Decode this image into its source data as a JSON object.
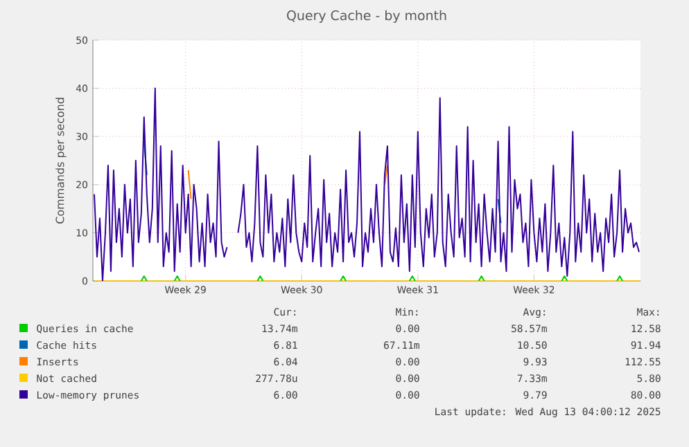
{
  "chart_data": {
    "type": "line",
    "title": "Query Cache - by month",
    "ylabel": "Commands per second",
    "categories": [
      null,
      null,
      null,
      null,
      null,
      null,
      null,
      null,
      null,
      null,
      null,
      null,
      null,
      null,
      null,
      null,
      null,
      null,
      null,
      null,
      null,
      null,
      null,
      null,
      null,
      null,
      null,
      null,
      null,
      null,
      null,
      null,
      null,
      "Week 29",
      null,
      null,
      null,
      null,
      null,
      null,
      null,
      null,
      null,
      null,
      null,
      null,
      null,
      null,
      null,
      null,
      null,
      null,
      null,
      null,
      null,
      null,
      null,
      null,
      null,
      null,
      null,
      null,
      null,
      null,
      null,
      null,
      null,
      null,
      null,
      null,
      null,
      null,
      null,
      null,
      null,
      "Week 30",
      null,
      null,
      null,
      null,
      null,
      null,
      null,
      null,
      null,
      null,
      null,
      null,
      null,
      null,
      null,
      null,
      null,
      null,
      null,
      null,
      null,
      null,
      null,
      null,
      null,
      null,
      null,
      null,
      null,
      null,
      null,
      null,
      null,
      null,
      null,
      null,
      null,
      null,
      null,
      null,
      null,
      "Week 31",
      null,
      null,
      null,
      null,
      null,
      null,
      null,
      null,
      null,
      null,
      null,
      null,
      null,
      null,
      null,
      null,
      null,
      null,
      null,
      null,
      null,
      null,
      null,
      null,
      null,
      null,
      null,
      null,
      null,
      null,
      null,
      null,
      null,
      null,
      null,
      null,
      null,
      null,
      null,
      null,
      null,
      "Week 32",
      null,
      null,
      null,
      null,
      null,
      null,
      null,
      null,
      null,
      null,
      null,
      null,
      null,
      null,
      null,
      null,
      null,
      null,
      null,
      null,
      null,
      null,
      null,
      null,
      null,
      null,
      null,
      null,
      null,
      null,
      null,
      null,
      null,
      null,
      null,
      null,
      null,
      null
    ],
    "series": [
      {
        "name": "Queries in cache",
        "color": "#00cc00",
        "values": [
          null,
          null,
          null,
          null,
          null,
          null,
          null,
          null,
          null,
          null,
          null,
          null,
          null,
          null,
          null,
          null,
          null,
          0,
          1,
          0,
          null,
          null,
          null,
          null,
          null,
          null,
          null,
          null,
          null,
          0,
          1,
          0,
          null,
          null,
          null,
          null,
          null,
          null,
          null,
          null,
          null,
          null,
          null,
          null,
          null,
          null,
          null,
          null,
          null,
          null,
          null,
          null,
          null,
          null,
          null,
          null,
          null,
          null,
          null,
          0,
          1,
          0,
          null,
          null,
          null,
          null,
          null,
          null,
          null,
          null,
          null,
          null,
          null,
          null,
          null,
          null,
          null,
          null,
          null,
          null,
          null,
          null,
          null,
          null,
          null,
          null,
          null,
          null,
          null,
          0,
          1,
          0,
          null,
          null,
          null,
          null,
          null,
          null,
          null,
          null,
          null,
          null,
          null,
          null,
          null,
          null,
          null,
          null,
          null,
          null,
          null,
          null,
          null,
          null,
          0,
          1,
          0,
          null,
          null,
          null,
          null,
          null,
          null,
          null,
          null,
          null,
          null,
          null,
          null,
          null,
          null,
          null,
          null,
          null,
          null,
          null,
          null,
          null,
          null,
          0,
          1,
          0,
          null,
          null,
          null,
          null,
          null,
          null,
          null,
          null,
          null,
          null,
          null,
          null,
          null,
          null,
          null,
          null,
          null,
          null,
          null,
          null,
          null,
          null,
          null,
          null,
          null,
          null,
          null,
          0,
          1,
          0,
          null,
          null,
          null,
          null,
          null,
          null,
          null,
          null,
          null,
          null,
          null,
          null,
          null,
          null,
          null,
          null,
          null,
          0,
          1,
          0,
          null,
          null,
          null,
          null,
          null,
          null
        ]
      },
      {
        "name": "Cache hits",
        "color": "#0066b3",
        "values": [
          null,
          null,
          null,
          null,
          null,
          null,
          null,
          null,
          null,
          null,
          null,
          null,
          null,
          null,
          null,
          null,
          null,
          null,
          29,
          22,
          null,
          null,
          null,
          null,
          null,
          null,
          null,
          null,
          null,
          null,
          null,
          null,
          null,
          null,
          null,
          null,
          null,
          null,
          null,
          null,
          null,
          null,
          null,
          null,
          null,
          null,
          null,
          null,
          null,
          null,
          null,
          null,
          null,
          null,
          null,
          null,
          null,
          null,
          null,
          null,
          null,
          null,
          null,
          null,
          null,
          null,
          null,
          null,
          null,
          null,
          null,
          null,
          null,
          null,
          null,
          null,
          null,
          null,
          null,
          null,
          null,
          null,
          null,
          null,
          null,
          null,
          null,
          null,
          null,
          null,
          null,
          null,
          null,
          null,
          null,
          null,
          null,
          null,
          null,
          null,
          null,
          null,
          null,
          null,
          null,
          null,
          null,
          null,
          null,
          null,
          null,
          null,
          null,
          null,
          null,
          null,
          null,
          null,
          null,
          null,
          null,
          null,
          null,
          null,
          null,
          null,
          null,
          null,
          null,
          null,
          null,
          null,
          null,
          null,
          null,
          null,
          null,
          null,
          null,
          null,
          null,
          null,
          null,
          null,
          null,
          null,
          17,
          12,
          null,
          null,
          null,
          null,
          null,
          null,
          null,
          null,
          null,
          null,
          null,
          null,
          null,
          null,
          null,
          null,
          null,
          null,
          null,
          null,
          null,
          null,
          null,
          null,
          null,
          null,
          null,
          null,
          null,
          null,
          null,
          null,
          null,
          null,
          null,
          null,
          null,
          null,
          null,
          null,
          null,
          null,
          null,
          null,
          null,
          null,
          null,
          null,
          null,
          null
        ]
      },
      {
        "name": "Inserts",
        "color": "#ff8000",
        "values": [
          null,
          null,
          null,
          null,
          null,
          null,
          null,
          null,
          null,
          null,
          null,
          null,
          null,
          null,
          null,
          null,
          null,
          null,
          null,
          null,
          null,
          null,
          null,
          null,
          null,
          null,
          null,
          null,
          null,
          null,
          null,
          null,
          null,
          null,
          23,
          17,
          null,
          null,
          null,
          null,
          null,
          null,
          null,
          null,
          null,
          null,
          null,
          null,
          null,
          null,
          null,
          null,
          null,
          null,
          null,
          null,
          null,
          null,
          null,
          null,
          null,
          null,
          null,
          null,
          null,
          null,
          null,
          null,
          null,
          null,
          null,
          null,
          null,
          null,
          null,
          null,
          null,
          null,
          null,
          null,
          null,
          null,
          null,
          null,
          null,
          null,
          null,
          null,
          null,
          null,
          null,
          null,
          null,
          null,
          null,
          null,
          null,
          null,
          null,
          null,
          null,
          null,
          null,
          null,
          null,
          20,
          24,
          null,
          null,
          null,
          null,
          null,
          null,
          null,
          null,
          null,
          null,
          null,
          null,
          null,
          null,
          null,
          null,
          null,
          null,
          null,
          null,
          null,
          null,
          null,
          null,
          null,
          null,
          null,
          null,
          null,
          null,
          null,
          null,
          null,
          null,
          null,
          null,
          null,
          null,
          null,
          null,
          null,
          null,
          null,
          null,
          null,
          null,
          null,
          null,
          null,
          null,
          null,
          null,
          null,
          null,
          null,
          null,
          null,
          null,
          null,
          null,
          null,
          null,
          null,
          null,
          null,
          null,
          null,
          null,
          null,
          null,
          null,
          null,
          null,
          null,
          null,
          null,
          null,
          null,
          null,
          null,
          null,
          null,
          null,
          null,
          null,
          null,
          null,
          null,
          null,
          null,
          null
        ]
      },
      {
        "name": "Not cached",
        "color": "#ffcc00",
        "values": [
          0,
          0,
          0,
          0,
          0,
          0,
          0,
          0,
          0,
          0,
          0,
          0,
          0,
          0,
          0,
          0,
          0,
          0,
          0,
          0,
          0,
          0,
          0,
          0,
          0,
          0,
          0,
          0,
          0,
          0,
          0,
          0,
          0,
          0,
          0,
          0,
          0,
          0,
          0,
          0,
          0,
          0,
          0,
          0,
          0,
          0,
          0,
          0,
          0,
          0,
          0,
          0,
          0,
          0,
          0,
          0,
          0,
          0,
          0,
          0,
          0,
          0,
          0,
          0,
          0,
          0,
          0,
          0,
          0,
          0,
          0,
          0,
          0,
          0,
          0,
          0,
          0,
          0,
          0,
          0,
          0,
          0,
          0,
          0,
          0,
          0,
          0,
          0,
          0,
          0,
          0,
          0,
          0,
          0,
          0,
          0,
          0,
          0,
          0,
          0,
          0,
          0,
          0,
          0,
          0,
          0,
          0,
          0,
          0,
          0,
          0,
          0,
          0,
          0,
          0,
          0,
          0,
          0,
          0,
          0,
          0,
          0,
          0,
          0,
          0,
          0,
          0,
          0,
          0,
          0,
          0,
          0,
          0,
          0,
          0,
          0,
          0,
          0,
          0,
          0,
          0,
          0,
          0,
          0,
          0,
          0,
          0,
          0,
          0,
          0,
          0,
          0,
          0,
          0,
          0,
          0,
          0,
          0,
          0,
          0,
          0,
          0,
          0,
          0,
          0,
          0,
          0,
          0,
          0,
          0,
          0,
          0,
          0,
          0,
          0,
          0,
          0,
          0,
          0,
          0,
          0,
          0,
          0,
          0,
          0,
          0,
          0,
          0,
          0,
          0,
          0,
          0,
          0,
          0,
          0,
          0,
          0,
          0
        ]
      },
      {
        "name": "Low-memory prunes",
        "color": "#330099",
        "values": [
          18,
          5,
          13,
          0,
          10,
          24,
          2,
          23,
          8,
          15,
          5,
          20,
          10,
          17,
          3,
          25,
          8,
          14,
          34,
          18,
          8,
          15,
          40,
          8,
          28,
          3,
          10,
          6,
          27,
          2,
          16,
          6,
          24,
          10,
          18,
          3,
          20,
          15,
          4,
          12,
          3,
          18,
          8,
          12,
          5,
          29,
          8,
          5,
          7,
          null,
          null,
          null,
          10,
          14,
          20,
          7,
          10,
          4,
          12,
          28,
          8,
          5,
          22,
          10,
          18,
          4,
          10,
          6,
          13,
          3,
          17,
          8,
          22,
          10,
          6,
          4,
          12,
          7,
          26,
          4,
          10,
          15,
          3,
          21,
          8,
          14,
          3,
          10,
          6,
          19,
          4,
          23,
          8,
          10,
          5,
          12,
          31,
          3,
          10,
          6,
          15,
          8,
          20,
          10,
          3,
          22,
          28,
          6,
          4,
          11,
          3,
          22,
          8,
          16,
          2,
          22,
          7,
          31,
          10,
          3,
          15,
          9,
          18,
          5,
          10,
          38,
          8,
          3,
          18,
          10,
          5,
          28,
          9,
          13,
          5,
          32,
          4,
          25,
          8,
          16,
          3,
          18,
          10,
          4,
          15,
          6,
          29,
          4,
          10,
          2,
          32,
          6,
          21,
          15,
          18,
          8,
          12,
          3,
          21,
          10,
          4,
          13,
          6,
          16,
          2,
          10,
          24,
          6,
          12,
          3,
          9,
          1,
          10,
          31,
          4,
          12,
          6,
          22,
          10,
          17,
          4,
          14,
          6,
          10,
          2,
          13,
          8,
          18,
          5,
          10,
          23,
          6,
          15,
          10,
          12,
          7,
          8,
          6
        ]
      }
    ],
    "ylim": [
      0,
      50
    ],
    "yticks": [
      0,
      10,
      20,
      30,
      40,
      50
    ],
    "grid": true,
    "legend": "bottom",
    "annotations": [
      "Cur:",
      "Min:",
      "Avg:",
      "Max:",
      "13.74m",
      "0.00",
      "58.57m",
      "12.58",
      "6.81",
      "67.11m",
      "10.50",
      "91.94",
      "6.04",
      "0.00",
      "9.93",
      "112.55",
      "277.78u",
      "0.00",
      "7.33m",
      "5.80",
      "6.00",
      "0.00",
      "9.79",
      "80.00",
      "Last update: Wed Aug 13 04:00:12 2025"
    ]
  }
}
